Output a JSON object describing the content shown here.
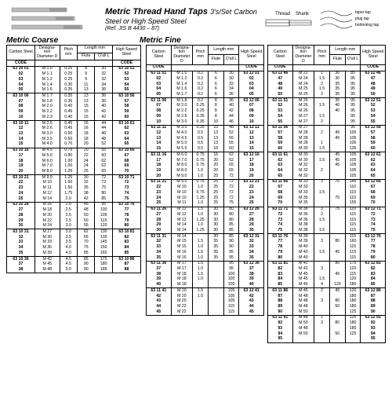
{
  "header": {
    "title": "Metric Thread Hand Taps",
    "qty": "3's/Set",
    "material": "Carbon Steel or High Speed Steel",
    "ref": "(Ref. JIS B 4430 – 87)",
    "dia_labels": {
      "thread": "Thread",
      "shank": "Shank",
      "taper": "taper tap",
      "plug": "plug tap",
      "bottom": "bottoming tap"
    }
  },
  "sections": {
    "coarse": "Metric Coarse",
    "fine": "Metric Fine"
  },
  "col_heads": {
    "cs": "Carbon\nSteel",
    "d": "Designa-\ntion\nDiameter\nD",
    "p": "Pitch\nmm",
    "len": "Length\nmm",
    "f": "Flute",
    "l": "O'all\nL",
    "hs": "High\nSpeed\nSteel",
    "code": "CODE"
  },
  "coarse": [
    [
      [
        "63 10 01",
        "M 1.0",
        "0.25",
        "8",
        "30",
        "63 10 51"
      ],
      [
        "02",
        "M 1.1",
        "0.25",
        "9",
        "32",
        "52"
      ],
      [
        "03",
        "M 1.2",
        "0.25",
        "9",
        "32",
        "53"
      ],
      [
        "04",
        "M 1.4",
        "0.30",
        "11",
        "34",
        "54"
      ],
      [
        "05",
        "M 1.6",
        "0.35",
        "13",
        "36",
        "55"
      ]
    ],
    [
      [
        "63 10 06",
        "M 1.7",
        "0.35",
        "13",
        "36",
        "63 10 56"
      ],
      [
        "07",
        "M 1.8",
        "0.35",
        "13",
        "36",
        "57"
      ],
      [
        "08",
        "M 2.0",
        "0.40",
        "15",
        "40",
        "58"
      ],
      [
        "09",
        "M 2.2",
        "0.45",
        "15",
        "42",
        "59"
      ],
      [
        "10",
        "M 2.3",
        "0.40",
        "15",
        "42",
        "60"
      ]
    ],
    [
      [
        "63 10 11",
        "M 2.5",
        "0.45",
        "16",
        "44",
        "63 10 61"
      ],
      [
        "12",
        "M 2.6",
        "0.45",
        "16",
        "44",
        "62"
      ],
      [
        "13",
        "M 3.0",
        "0.50",
        "18",
        "46",
        "63"
      ],
      [
        "14",
        "M 3.5",
        "0.60",
        "18",
        "48",
        "64"
      ],
      [
        "15",
        "M 4.0",
        "0.70",
        "20",
        "52",
        "65"
      ]
    ],
    [
      [
        "63 10 16",
        "M 4.5",
        "0.75",
        "20",
        "55",
        "63 10 66"
      ],
      [
        "17",
        "M 5.0",
        "0.80",
        "22",
        "60",
        "67"
      ],
      [
        "18",
        "M 6.0",
        "1.00",
        "24",
        "62",
        "68"
      ],
      [
        "19",
        "M 7.0",
        "1.00",
        "24",
        "62",
        "69"
      ],
      [
        "20",
        "M 8.0",
        "1.25",
        "25",
        "65",
        "70"
      ]
    ],
    [
      [
        "63 10 21",
        "M 9.0",
        "1.25",
        "30",
        "72",
        "63 10 71"
      ],
      [
        "22",
        "M 10",
        "1.50",
        "32",
        "72",
        "72"
      ],
      [
        "23",
        "M 11",
        "1.50",
        "35",
        "75",
        "73"
      ],
      [
        "24",
        "M 12",
        "1.75",
        "38",
        "80",
        "74"
      ],
      [
        "25",
        "M 14",
        "2.0",
        "42",
        "85",
        "75"
      ]
    ],
    [
      [
        "63 10 26",
        "M 16",
        "2.0",
        "45",
        "95",
        "63 10 76"
      ],
      [
        "27",
        "M 18",
        "2.5",
        "48",
        "100",
        "77"
      ],
      [
        "28",
        "M 20",
        "2.5",
        "50",
        "105",
        "78"
      ],
      [
        "29",
        "M 22",
        "2.5",
        "50",
        "115",
        "79"
      ],
      [
        "30",
        "M 24",
        "3.0",
        "55",
        "120",
        "80"
      ]
    ],
    [
      [
        "63 10 31",
        "M 27",
        "3.0",
        "62",
        "130",
        "63 10 81"
      ],
      [
        "32",
        "M 30",
        "3.5",
        "65",
        "135",
        "82"
      ],
      [
        "33",
        "M 33",
        "3.5",
        "70",
        "145",
        "83"
      ],
      [
        "34",
        "M 36",
        "4.0",
        "75",
        "150",
        "84"
      ],
      [
        "35",
        "M 39",
        "4.0",
        "85",
        "165",
        "85"
      ]
    ],
    [
      [
        "63 10 36",
        "M 42",
        "4.5",
        "85",
        "175",
        "63 10 86"
      ],
      [
        "37",
        "M 45",
        "4.5",
        "90",
        "180",
        "87"
      ],
      [
        "38",
        "M 48",
        "5.0",
        "90",
        "185",
        "88"
      ]
    ]
  ],
  "fine_cols": [
    [
      [
        [
          "63 11 01",
          "M 1.0",
          "0.2",
          "6",
          "30",
          "63 12 01"
        ],
        [
          "02",
          "M 1.2",
          "0.2",
          "6",
          "30",
          "02"
        ],
        [
          "03",
          "M 1.4",
          "0.2",
          "6",
          "32",
          "03"
        ],
        [
          "04",
          "M 1.6",
          "0.2",
          "6",
          "34",
          "04"
        ],
        [
          "05",
          "M 1.7",
          "0.2",
          "6",
          "36",
          "05"
        ]
      ],
      [
        [
          "63 11 06",
          "M 1.8",
          "0.2",
          "8",
          "36",
          "63 12 06"
        ],
        [
          "07",
          "M 2.0",
          "0.25",
          "8",
          "40",
          "07"
        ],
        [
          "08",
          "M 2.2",
          "0.25",
          "8",
          "42",
          "08"
        ],
        [
          "09",
          "M 2.5",
          "0.35",
          "8",
          "44",
          "09"
        ],
        [
          "10",
          "M 3.0",
          "0.35",
          "10",
          "46",
          "10"
        ]
      ],
      [
        [
          "63 11 11",
          "M 3.5",
          "0.35",
          "10",
          "48",
          "63 12 11"
        ],
        [
          "12",
          "M 4.0",
          "0.5",
          "13",
          "52",
          "12"
        ],
        [
          "13",
          "M 4.5",
          "0.5",
          "13",
          "55",
          "13"
        ],
        [
          "14",
          "M 5.0",
          "0.5",
          "13",
          "55",
          "14"
        ],
        [
          "15",
          "M 5.5",
          "0.5",
          "16",
          "60",
          "15"
        ]
      ],
      [
        [
          "63 11 16",
          "M 6.0",
          "0.75",
          "16",
          "62",
          "63 12 16"
        ],
        [
          "17",
          "M 7.0",
          "0.75",
          "20",
          "62",
          "17"
        ],
        [
          "18",
          "M 8.0",
          "0.75",
          "20",
          "65",
          "18"
        ],
        [
          "19",
          "M 8.0",
          "1.0",
          "20",
          "65",
          "19"
        ],
        [
          "20",
          "M 9.0",
          "1.0",
          "25",
          "72",
          "20"
        ]
      ],
      [
        [
          "63 11 21",
          "M 9.0",
          "0.75",
          "25",
          "72",
          "63 12 21"
        ],
        [
          "22",
          "M 10",
          "1.0",
          "25",
          "72",
          "22"
        ],
        [
          "23",
          "M 10",
          "0.75",
          "25",
          "72",
          "23"
        ],
        [
          "24",
          "M 10",
          "1.25",
          "25",
          "72",
          "24"
        ],
        [
          "25",
          "M 11",
          "1.0",
          "25",
          "75",
          "25"
        ]
      ],
      [
        [
          "63 11 26",
          "M 12",
          "1.5",
          "30",
          "80",
          "63 12 26"
        ],
        [
          "27",
          "M 12",
          "1.0",
          "30",
          "80",
          "27"
        ],
        [
          "28",
          "M 12",
          "1.25",
          "30",
          "80",
          "28"
        ],
        [
          "29",
          "M 14",
          "1.0",
          "30",
          "85",
          "29"
        ],
        [
          "30",
          "M 14",
          "1.25",
          "30",
          "85",
          "30"
        ]
      ],
      [
        [
          "63 11 31",
          "M 14",
          "",
          "30",
          "85",
          "63 12 31"
        ],
        [
          "32",
          "M 15",
          "1.5",
          "35",
          "90",
          "32"
        ],
        [
          "33",
          "M 15",
          "1.0",
          "35",
          "90",
          "33"
        ],
        [
          "34",
          "M 16",
          "1.5",
          "35",
          "95",
          "34"
        ],
        [
          "35",
          "M 16",
          "1.0",
          "35",
          "95",
          "35"
        ]
      ],
      [
        [
          "63 11 36",
          "M 17",
          "1.5",
          "",
          "95",
          "63 12 36"
        ],
        [
          "37",
          "M 17",
          "1.0",
          "",
          "95",
          "37"
        ],
        [
          "38",
          "M 18",
          "1.5",
          "",
          "100",
          "38"
        ],
        [
          "39",
          "M 18",
          "1.0",
          "",
          "100",
          "39"
        ],
        [
          "40",
          "M 18",
          "",
          "",
          "100",
          "40"
        ]
      ],
      [
        [
          "63 11 41",
          "M 20",
          "1.5",
          "",
          "105",
          "63 12 41"
        ],
        [
          "42",
          "M 20",
          "1.0",
          "",
          "105",
          "42"
        ],
        [
          "43",
          "M 20",
          "",
          "",
          "105",
          "43"
        ],
        [
          "44",
          "M 22",
          "",
          "",
          "115",
          "44"
        ],
        [
          "45",
          "M 22",
          "",
          "",
          "115",
          "45"
        ]
      ]
    ],
    [
      [
        [
          "63 12 46",
          "M 22",
          "1",
          "30",
          "85",
          "63 12 46"
        ],
        [
          "47",
          "M 24",
          "1.5",
          "30",
          "95",
          "47"
        ],
        [
          "48",
          "M 24",
          "2",
          "35",
          "95",
          "48"
        ],
        [
          "49",
          "M 25",
          "1.5",
          "35",
          "95",
          "49"
        ],
        [
          "50",
          "M 25",
          "2",
          "35",
          "95",
          "50"
        ]
      ],
      [
        [
          "63 11 51",
          "M 25",
          "",
          "35",
          "95",
          "63 12 51"
        ],
        [
          "52",
          "M 26",
          "1.5",
          "40",
          "95",
          "52"
        ],
        [
          "53",
          "M 26",
          "",
          "40",
          "95",
          "53"
        ],
        [
          "54",
          "M 27",
          "1.5",
          "",
          "95",
          "54"
        ],
        [
          "55",
          "M 27",
          "2",
          "",
          "95",
          "55"
        ]
      ],
      [
        [
          "63 11 56",
          "M 27",
          "",
          "",
          "95",
          "63 12 56"
        ],
        [
          "57",
          "M 28",
          "2",
          "45",
          "105",
          "57"
        ],
        [
          "58",
          "M 28",
          "",
          "45",
          "105",
          "58"
        ],
        [
          "59",
          "M 28",
          "1",
          "",
          "105",
          "59"
        ],
        [
          "60",
          "M 30",
          "1.5",
          "",
          "135",
          "60"
        ]
      ],
      [
        [
          "63 11 61",
          "M 30",
          "",
          "45",
          "105",
          "63 12 61"
        ],
        [
          "62",
          "M 30",
          "1.5",
          "45",
          "105",
          "62"
        ],
        [
          "63",
          "M 32",
          "",
          "45",
          "105",
          "63"
        ],
        [
          "64",
          "M 32",
          "2",
          "",
          "105",
          "64"
        ],
        [
          "65",
          "M 32",
          "",
          "",
          "105",
          "65"
        ]
      ],
      [
        [
          "63 11 66",
          "M 33",
          "3",
          "70",
          "145",
          "63 12 66"
        ],
        [
          "67",
          "M 33",
          "",
          "",
          "110",
          "67"
        ],
        [
          "68",
          "M 33",
          "1.5",
          "",
          "110",
          "68"
        ],
        [
          "69",
          "M 35",
          "",
          "70",
          "110",
          "69"
        ],
        [
          "70",
          "M 35",
          "",
          "",
          "155",
          "70"
        ]
      ],
      [
        [
          "63 11 71",
          "M 36",
          "3",
          "75",
          "110",
          "63 12 71"
        ],
        [
          "72",
          "M 36",
          "2",
          "",
          "115",
          "72"
        ],
        [
          "73",
          "M 36",
          "1.5",
          "",
          "115",
          "73"
        ],
        [
          "74",
          "M 38",
          "",
          "",
          "115",
          "74"
        ],
        [
          "75",
          "M 38",
          "1.5",
          "",
          "115",
          "75"
        ]
      ],
      [
        [
          "63 11 76",
          "M 39",
          "",
          "",
          "115",
          "63 12 76"
        ],
        [
          "77",
          "M 39",
          "3",
          "80",
          "160",
          "77"
        ],
        [
          "78",
          "M 40",
          "",
          "",
          "115",
          "78"
        ],
        [
          "79",
          "M 40",
          "1.5",
          "45",
          "115",
          "79"
        ],
        [
          "80",
          "M 40",
          "",
          "",
          "115",
          "80"
        ]
      ],
      [
        [
          "63 11 81",
          "M 42",
          "",
          "80",
          "175",
          "63 12 81"
        ],
        [
          "82",
          "M 42",
          "3",
          "",
          "120",
          "82"
        ],
        [
          "83",
          "M 45",
          "",
          "45",
          "115",
          "83"
        ],
        [
          "84",
          "M 45",
          "1.5",
          "",
          "120",
          "84"
        ],
        [
          "85",
          "M 45",
          "4",
          "120",
          "180",
          "85"
        ]
      ],
      [
        [
          "63 11 86",
          "M 45",
          "2",
          "45",
          "120",
          "63 12 86"
        ],
        [
          "87",
          "M 48",
          "",
          "",
          "180",
          "87"
        ],
        [
          "88",
          "M 48",
          "3",
          "80",
          "180",
          "88"
        ],
        [
          "89",
          "M 48",
          "",
          "50",
          "180",
          "89"
        ],
        [
          "90",
          "M 50",
          "",
          "",
          "125",
          "90"
        ]
      ],
      [
        [
          "63 11 91",
          "M 48",
          "1",
          "",
          "125",
          "63 12 91"
        ],
        [
          "92",
          "M 50",
          "3",
          "80",
          "180",
          "92"
        ],
        [
          "93",
          "M 48",
          "",
          "",
          "180",
          "93"
        ],
        [
          "94",
          "M 50",
          "",
          "50",
          "125",
          "94"
        ],
        [
          "95",
          "",
          "",
          "",
          "",
          "95"
        ]
      ]
    ]
  ]
}
